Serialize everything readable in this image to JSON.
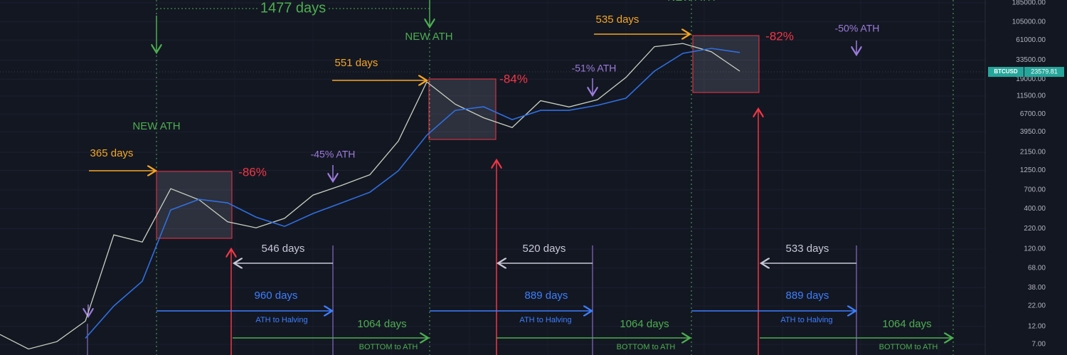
{
  "chart_data": {
    "type": "line",
    "log_y": true,
    "grid": true,
    "x": [
      0,
      40,
      80,
      120,
      160,
      200,
      240,
      280,
      320,
      360,
      400,
      440,
      480,
      520,
      560,
      600,
      640,
      680,
      720,
      760,
      800,
      840,
      880,
      920,
      960,
      1000,
      1040
    ],
    "xlim": [
      0,
      1385
    ],
    "ylim": [
      5.1,
      201000
    ],
    "yticks": [
      {
        "value": 185000,
        "label": "185000.00"
      },
      {
        "value": 105000,
        "label": "105000.00"
      },
      {
        "value": 61000,
        "label": "61000.00"
      },
      {
        "value": 33500,
        "label": "33500.00"
      },
      {
        "value": 19000,
        "label": "19000.00"
      },
      {
        "value": 11500,
        "label": "11500.00"
      },
      {
        "value": 6700,
        "label": "6700.00"
      },
      {
        "value": 3950,
        "label": "3950.00"
      },
      {
        "value": 2150,
        "label": "2150.00"
      },
      {
        "value": 1250,
        "label": "1250.00"
      },
      {
        "value": 700,
        "label": "700.00"
      },
      {
        "value": 400,
        "label": "400.00"
      },
      {
        "value": 220,
        "label": "220.00"
      },
      {
        "value": 120,
        "label": "120.00"
      },
      {
        "value": 68,
        "label": "68.00"
      },
      {
        "value": 38,
        "label": "38.00"
      },
      {
        "value": 22,
        "label": "22.00"
      },
      {
        "value": 12,
        "label": "12.00"
      },
      {
        "value": 7,
        "label": "7.00"
      }
    ],
    "series": [
      {
        "color": "#c8d0c0",
        "values": [
          9.4,
          6.1,
          7.6,
          14,
          183,
          148,
          726,
          520,
          270,
          226,
          300,
          600,
          800,
          1100,
          3000,
          17500,
          9000,
          6000,
          4500,
          10000,
          8300,
          10300,
          20000,
          50000,
          55000,
          43000,
          24100
        ]
      },
      {
        "color": "#2f6fe0",
        "values": [
          null,
          null,
          null,
          8.4,
          22,
          46,
          385,
          528,
          475,
          311,
          236,
          346,
          475,
          653,
          1236,
          3573,
          7500,
          8340,
          5690,
          7500,
          7500,
          8710,
          10760,
          24100,
          41000,
          47500,
          42000
        ]
      }
    ],
    "price_tag": {
      "symbol": "BTCUSD",
      "value": 23579.81,
      "label": "23579.81"
    },
    "annotations": [
      {
        "text": "1477 days",
        "color": "#4caf50"
      },
      {
        "text": "NEW ATH",
        "color": "#4caf50"
      },
      {
        "text": "NEW ATH",
        "color": "#4caf50"
      },
      {
        "text": "NEW ATH",
        "color": "#4caf50"
      },
      {
        "text": "551 days",
        "color": "#f5a623"
      },
      {
        "text": "-84%",
        "color": "#f23645"
      },
      {
        "text": "365 days",
        "color": "#f5a623"
      },
      {
        "text": "-86%",
        "color": "#f23645"
      },
      {
        "text": "-45% ATH",
        "color": "#9c7bdc"
      },
      {
        "text": "-51% ATH",
        "color": "#9c7bdc"
      },
      {
        "text": "535 days",
        "color": "#f5a623"
      },
      {
        "text": "-82%",
        "color": "#f23645"
      },
      {
        "text": "-50% ATH",
        "color": "#9c7bdc"
      },
      {
        "text": "546 days",
        "color": "#c8c8d8"
      },
      {
        "text": "520 days",
        "color": "#c8c8d8"
      },
      {
        "text": "533 days",
        "color": "#c8c8d8"
      },
      {
        "text": "960 days",
        "color": "#3d7fff"
      },
      {
        "text": "889 days",
        "color": "#3d7fff"
      },
      {
        "text": "889 days",
        "color": "#3d7fff"
      },
      {
        "text": "ATH to Halving",
        "color": "#3d7fff"
      },
      {
        "text": "ATH to Halving",
        "color": "#3d7fff"
      },
      {
        "text": "ATH to Halving",
        "color": "#3d7fff"
      },
      {
        "text": "1064 days",
        "color": "#4caf50"
      },
      {
        "text": "1064 days",
        "color": "#4caf50"
      },
      {
        "text": "1064 days",
        "color": "#4caf50"
      },
      {
        "text": "BOTTOM to ATH",
        "color": "#4caf50"
      },
      {
        "text": "BOTTOM to ATH",
        "color": "#4caf50"
      },
      {
        "text": "BOTTOM to ATH",
        "color": "#4caf50"
      }
    ]
  }
}
